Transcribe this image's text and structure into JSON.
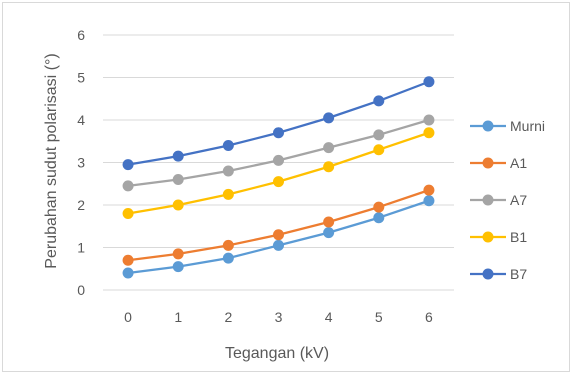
{
  "chart_data": {
    "type": "line",
    "title": "",
    "xlabel": "Tegangan (kV)",
    "ylabel": "Perubahan sudut polarisasi (°)",
    "x": [
      0,
      1,
      2,
      3,
      4,
      5,
      6
    ],
    "xticks": [
      "0",
      "1",
      "2",
      "3",
      "4",
      "5",
      "6"
    ],
    "ylim": [
      0,
      6
    ],
    "yticks": [
      "0",
      "1",
      "2",
      "3",
      "4",
      "5",
      "6"
    ],
    "grid": true,
    "legend_position": "right",
    "series": [
      {
        "name": "Murni",
        "color": "#5B9BD5",
        "values": [
          0.4,
          0.55,
          0.75,
          1.05,
          1.35,
          1.7,
          2.1
        ]
      },
      {
        "name": "A1",
        "color": "#ED7D31",
        "values": [
          0.7,
          0.85,
          1.05,
          1.3,
          1.6,
          1.95,
          2.35
        ]
      },
      {
        "name": "A7",
        "color": "#A5A5A5",
        "values": [
          2.45,
          2.6,
          2.8,
          3.05,
          3.35,
          3.65,
          4.0
        ]
      },
      {
        "name": "B1",
        "color": "#FFC000",
        "values": [
          1.8,
          2.0,
          2.25,
          2.55,
          2.9,
          3.3,
          3.7
        ]
      },
      {
        "name": "B7",
        "color": "#4472C4",
        "values": [
          2.95,
          3.15,
          3.4,
          3.7,
          4.05,
          4.45,
          4.9
        ]
      }
    ],
    "gridline_color": "#d9d9d9"
  }
}
